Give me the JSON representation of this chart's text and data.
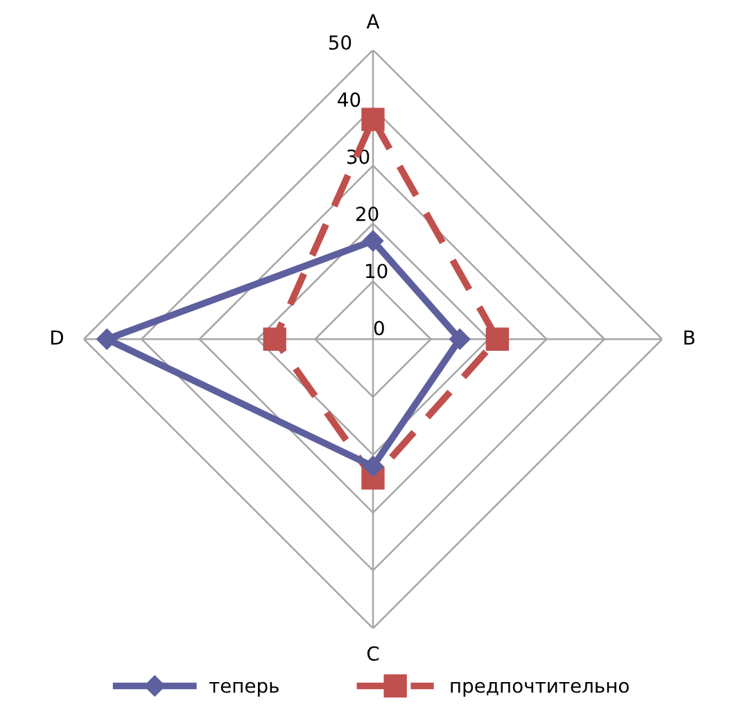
{
  "chart_data": {
    "type": "radar",
    "categories": [
      "A",
      "B",
      "C",
      "D"
    ],
    "series": [
      {
        "name": "теперь",
        "color": "#5e5f9e",
        "values": [
          17,
          15,
          22,
          46
        ],
        "marker": "diamond",
        "line_style": "solid"
      },
      {
        "name": "предпочтительно",
        "color": "#c0504d",
        "values": [
          38,
          21.5,
          24,
          17
        ],
        "marker": "square",
        "line_style": "dashed"
      }
    ],
    "ylim": [
      0,
      50
    ],
    "yticks": [
      0,
      10,
      20,
      30,
      40,
      50
    ],
    "grid": true,
    "legend": "bottom"
  }
}
